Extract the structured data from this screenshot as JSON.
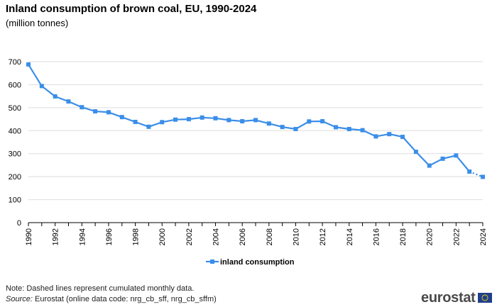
{
  "header": {
    "title": "Inland consumption of brown coal, EU, 1990-2024",
    "subtitle": "(million tonnes)"
  },
  "legend": {
    "label": "inland consumption"
  },
  "footer": {
    "note": "Note: Dashed lines represent cumulated monthly data.",
    "source_label": "Source:",
    "source_text": "Eurostat (online data code: nrg_cb_sff, nrg_cb_sffm)",
    "logo_text": "eurostat"
  },
  "colors": {
    "series": "#3b8ee8",
    "grid": "#dddddd",
    "axis": "#000000",
    "eu_blue": "#1f3e8c",
    "eu_star": "#ffdd00"
  },
  "chart_data": {
    "type": "line",
    "title": "Inland consumption of brown coal, EU, 1990-2024",
    "subtitle": "(million tonnes)",
    "xlabel": "",
    "ylabel": "",
    "ylim": [
      0,
      700
    ],
    "yticks": [
      0,
      100,
      200,
      300,
      400,
      500,
      600,
      700
    ],
    "xticks": [
      "1990",
      "1992",
      "1994",
      "1996",
      "1998",
      "2000",
      "2002",
      "2004",
      "2006",
      "2008",
      "2010",
      "2012",
      "2014",
      "2016",
      "2018",
      "2020",
      "2022",
      "2024"
    ],
    "grid": true,
    "legend_position": "bottom",
    "x": [
      1990,
      1991,
      1992,
      1993,
      1994,
      1995,
      1996,
      1997,
      1998,
      1999,
      2000,
      2001,
      2002,
      2003,
      2004,
      2005,
      2006,
      2007,
      2008,
      2009,
      2010,
      2011,
      2012,
      2013,
      2014,
      2015,
      2016,
      2017,
      2018,
      2019,
      2020,
      2021,
      2022,
      2023,
      2024
    ],
    "series": [
      {
        "name": "inland consumption",
        "values": [
          688,
          594,
          549,
          527,
          502,
          484,
          480,
          459,
          438,
          417,
          437,
          448,
          450,
          457,
          454,
          446,
          441,
          446,
          431,
          416,
          407,
          440,
          441,
          415,
          407,
          402,
          375,
          385,
          373,
          308,
          248,
          278,
          292,
          222,
          199
        ],
        "dashed_from": "2023"
      }
    ]
  }
}
